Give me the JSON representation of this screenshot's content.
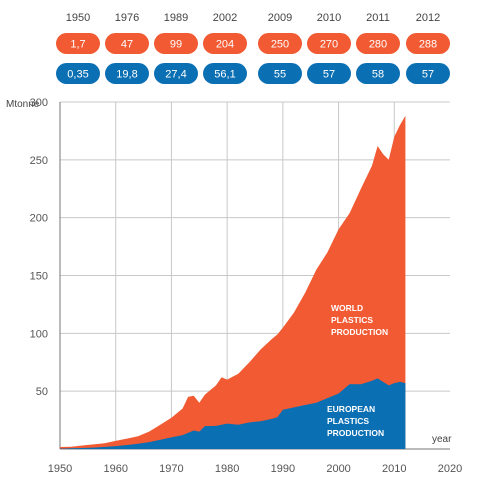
{
  "chart_data": {
    "type": "area",
    "header_years": [
      "1950",
      "1976",
      "1989",
      "2002",
      "2009",
      "2010",
      "2011",
      "2012"
    ],
    "header_world": [
      "1,7",
      "47",
      "99",
      "204",
      "250",
      "270",
      "280",
      "288"
    ],
    "header_europe": [
      "0,35",
      "19,8",
      "27,4",
      "56,1",
      "55",
      "57",
      "58",
      "57"
    ],
    "ylabel": "Mtonne",
    "xlabel": "year",
    "xlim": [
      1950,
      2020
    ],
    "ylim": [
      0,
      300
    ],
    "x_ticks": [
      "1950",
      "1960",
      "1970",
      "1980",
      "1990",
      "2000",
      "2010",
      "2020"
    ],
    "y_ticks": [
      "50",
      "100",
      "150",
      "200",
      "250",
      "300"
    ],
    "grid": true,
    "colors": {
      "world": "#f15a32",
      "europe": "#0b6fb4",
      "grid": "#c8c8c8",
      "axis": "#777777"
    },
    "series": [
      {
        "name": "WORLD PLASTICS PRODUCTION",
        "label_lines": [
          "WORLD",
          "PLASTICS",
          "PRODUCTION"
        ],
        "x": [
          1950,
          1952,
          1954,
          1956,
          1958,
          1960,
          1962,
          1964,
          1966,
          1968,
          1970,
          1972,
          1973,
          1974,
          1975,
          1976,
          1978,
          1979,
          1980,
          1982,
          1984,
          1986,
          1988,
          1989,
          1990,
          1992,
          1994,
          1996,
          1998,
          2000,
          2002,
          2004,
          2006,
          2007,
          2008,
          2009,
          2010,
          2011,
          2012
        ],
        "values": [
          1.7,
          2,
          3,
          4,
          5,
          7,
          9,
          11,
          15,
          21,
          27,
          35,
          45,
          46,
          40,
          47,
          55,
          62,
          60,
          65,
          75,
          86,
          95,
          99,
          105,
          118,
          135,
          155,
          170,
          190,
          204,
          225,
          245,
          262,
          255,
          250,
          270,
          280,
          288
        ]
      },
      {
        "name": "EUROPEAN PLASTICS PRODUCTION",
        "label_lines": [
          "EUROPEAN",
          "PLASTICS",
          "PRODUCTION"
        ],
        "x": [
          1950,
          1952,
          1954,
          1956,
          1958,
          1960,
          1962,
          1964,
          1966,
          1968,
          1970,
          1972,
          1974,
          1975,
          1976,
          1978,
          1980,
          1982,
          1984,
          1986,
          1988,
          1989,
          1990,
          1992,
          1994,
          1996,
          1998,
          2000,
          2002,
          2004,
          2006,
          2007,
          2008,
          2009,
          2010,
          2011,
          2012
        ],
        "values": [
          0.35,
          0.6,
          0.9,
          1.2,
          1.8,
          2.5,
          3.5,
          4.5,
          6,
          8,
          10,
          12,
          16,
          15,
          19.8,
          20,
          22,
          21,
          23,
          24,
          26,
          27.4,
          34,
          36,
          38,
          40,
          44,
          48,
          56.1,
          56,
          59,
          61,
          58,
          55,
          57,
          58,
          57
        ]
      }
    ]
  }
}
